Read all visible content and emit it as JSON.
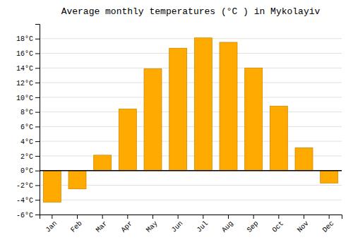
{
  "chart_data": {
    "type": "bar",
    "title": "Average monthly temperatures (°C ) in Mykolayiv",
    "categories": [
      "Jan",
      "Feb",
      "Mar",
      "Apr",
      "May",
      "Jun",
      "Jul",
      "Aug",
      "Sep",
      "Oct",
      "Nov",
      "Dec"
    ],
    "values": [
      -4.3,
      -2.5,
      2.1,
      8.4,
      13.9,
      16.7,
      18.1,
      17.5,
      14.0,
      8.8,
      3.1,
      -1.7
    ],
    "color": "#FFAA00",
    "ylim": [
      -6,
      20
    ],
    "yticks": [
      {
        "value": -6,
        "label": "-6°C"
      },
      {
        "value": -4,
        "label": "-4°C"
      },
      {
        "value": -2,
        "label": "-2°C"
      },
      {
        "value": 0,
        "label": "0°C"
      },
      {
        "value": 2,
        "label": "2°C"
      },
      {
        "value": 4,
        "label": "4°C"
      },
      {
        "value": 6,
        "label": "6°C"
      },
      {
        "value": 8,
        "label": "8°C"
      },
      {
        "value": 10,
        "label": "10°C"
      },
      {
        "value": 12,
        "label": "12°C"
      },
      {
        "value": 14,
        "label": "14°C"
      },
      {
        "value": 16,
        "label": "16°C"
      },
      {
        "value": 18,
        "label": "18°C"
      }
    ],
    "grid": true
  }
}
